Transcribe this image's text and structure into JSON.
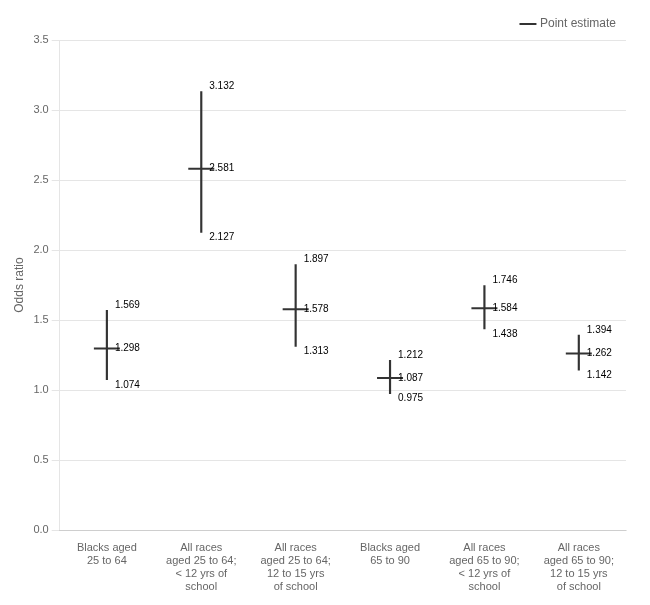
{
  "chart_data": {
    "type": "errorbar",
    "ylabel": "Odds ratio",
    "categories": [
      "Blacks aged\n25 to 64",
      "All races\naged 25 to 64;\n< 12 yrs of\nschool",
      "All races\naged 25 to 64;\n12 to 15 yrs\nof school",
      "Blacks aged\n65 to 90",
      "All races\naged 65 to 90;\n< 12 yrs of\nschool",
      "All races\naged 65 to 90;\n12 to 15 yrs\nof school"
    ],
    "series": [
      {
        "name": "Point estimate",
        "color": "#333333",
        "values": [
          1.298,
          2.581,
          1.578,
          1.087,
          1.584,
          1.262
        ],
        "lower": [
          1.074,
          2.127,
          1.313,
          0.975,
          1.438,
          1.142
        ],
        "upper": [
          1.569,
          3.132,
          1.897,
          1.212,
          1.746,
          1.394
        ]
      }
    ],
    "ylim": [
      0.0,
      3.5
    ],
    "yticks": [
      {
        "value": 0,
        "label": "0.0"
      },
      0.5,
      {
        "value": 1,
        "label": "1.0"
      },
      1.5,
      {
        "value": 2,
        "label": "2.0"
      },
      2.5,
      {
        "value": 3,
        "label": "3.0"
      },
      3.5
    ],
    "grid": true,
    "legend": "upper right",
    "data_labels": true
  }
}
